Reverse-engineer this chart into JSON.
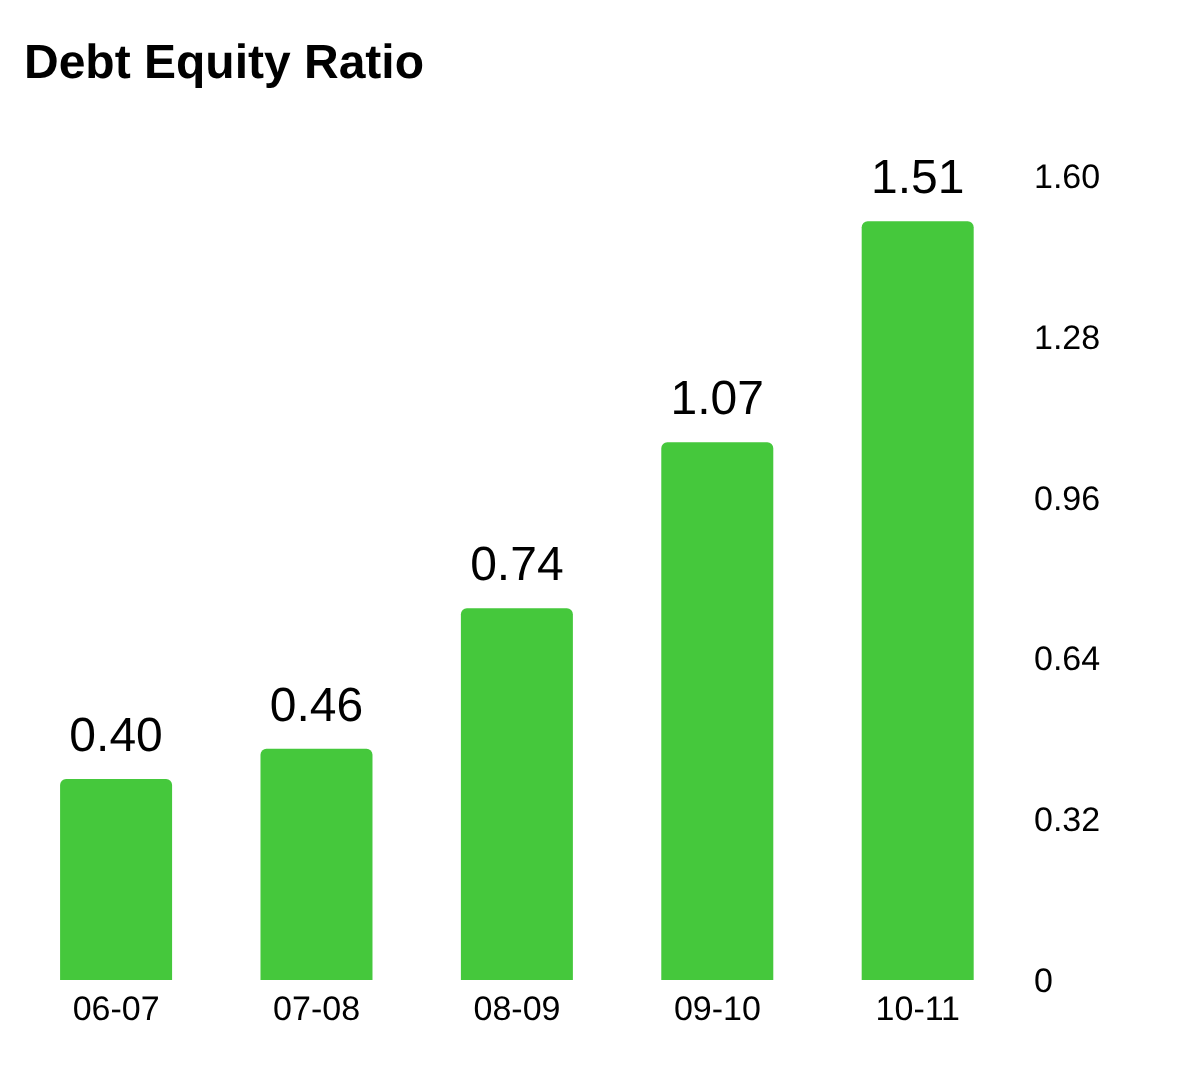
{
  "chart_data": {
    "type": "bar",
    "title": "Debt Equity Ratio",
    "categories": [
      "06-07",
      "07-08",
      "08-09",
      "09-10",
      "10-11"
    ],
    "values": [
      0.4,
      0.46,
      0.74,
      1.07,
      1.51
    ],
    "color": "#45c83c",
    "value_labels": [
      "0.40",
      "0.46",
      "0.74",
      "1.07",
      "1.51"
    ],
    "ylim": [
      0,
      1.6
    ],
    "yticks": [
      0,
      0.32,
      0.64,
      0.96,
      1.28,
      {
        "value": 1.6,
        "label": "1.60"
      }
    ],
    "grid": false,
    "legend": false
  }
}
